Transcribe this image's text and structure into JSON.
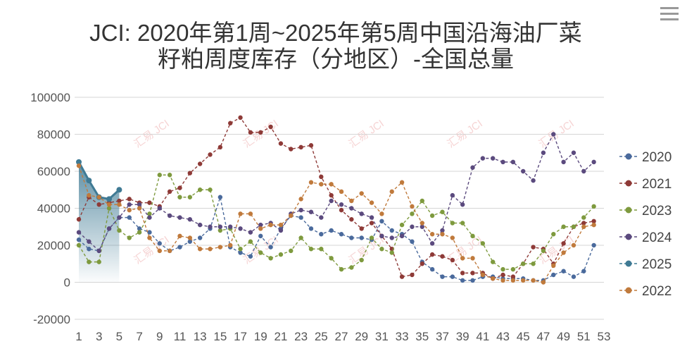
{
  "chart_data": {
    "type": "line",
    "title": "JCI: 2020年第1周~2025年第5周中国沿海油厂菜籽粕周度库存（分地区）-全国总量",
    "title_lines": [
      "JCI: 2020年第1周~2025年第5周中国沿海油厂菜",
      "籽粕周度库存（分地区）-全国总量"
    ],
    "xlabel": "",
    "ylabel": "",
    "x": [
      1,
      2,
      3,
      4,
      5,
      6,
      7,
      8,
      9,
      10,
      11,
      12,
      13,
      14,
      15,
      16,
      17,
      18,
      19,
      20,
      21,
      22,
      23,
      24,
      25,
      26,
      27,
      28,
      29,
      30,
      31,
      32,
      33,
      34,
      35,
      36,
      37,
      38,
      39,
      40,
      41,
      42,
      43,
      44,
      45,
      46,
      47,
      48,
      49,
      50,
      51,
      52,
      53
    ],
    "x_tick_labels": [
      "1",
      "3",
      "5",
      "7",
      "9",
      "11",
      "13",
      "15",
      "17",
      "19",
      "21",
      "23",
      "25",
      "27",
      "29",
      "31",
      "33",
      "35",
      "37",
      "39",
      "41",
      "43",
      "45",
      "47",
      "49",
      "51",
      "53"
    ],
    "y_ticks": [
      "100000",
      "80000",
      "60000",
      "40000",
      "20000",
      "0",
      "-20000"
    ],
    "ylim": [
      -20000,
      100000
    ],
    "grid": true,
    "legend_position": "right",
    "watermark": "汇易 JCI",
    "series": [
      {
        "name": "2020",
        "color": "#4a6a9c",
        "values": [
          23000,
          18000,
          17000,
          29000,
          35000,
          35000,
          29000,
          27000,
          21000,
          17000,
          19000,
          22000,
          24000,
          29000,
          46000,
          19000,
          16000,
          14000,
          25000,
          19000,
          29000,
          36000,
          35000,
          29000,
          26000,
          28000,
          26000,
          24000,
          24000,
          23000,
          33000,
          28000,
          26000,
          22000,
          11000,
          7000,
          3000,
          3000,
          1000,
          1000,
          3000,
          3000,
          2000,
          2000,
          2000,
          1000,
          1000,
          4000,
          6000,
          3000,
          6000,
          20000,
          null
        ]
      },
      {
        "name": "2021",
        "color": "#8e3a37",
        "values": [
          34000,
          46000,
          42000,
          43000,
          44000,
          45000,
          43000,
          43000,
          41000,
          49000,
          51000,
          59000,
          64000,
          69000,
          73000,
          86000,
          89000,
          81000,
          81000,
          84000,
          75000,
          72000,
          73000,
          74000,
          57000,
          47000,
          39000,
          34000,
          29000,
          32000,
          25000,
          18000,
          3000,
          4000,
          10000,
          15000,
          14000,
          12000,
          5000,
          5000,
          5000,
          2000,
          4000,
          3000,
          10000,
          19000,
          18000,
          10000,
          21000,
          30000,
          32000,
          33000,
          null
        ]
      },
      {
        "name": "2023",
        "color": "#7e9a3e",
        "values": [
          20000,
          11000,
          11000,
          40000,
          28000,
          24000,
          27000,
          37000,
          58000,
          58000,
          46000,
          46000,
          50000,
          50000,
          28000,
          29000,
          18000,
          22000,
          16000,
          13000,
          15000,
          17000,
          24000,
          18000,
          18000,
          13000,
          7000,
          8000,
          12000,
          24000,
          18000,
          16000,
          31000,
          37000,
          44000,
          36000,
          38000,
          32000,
          32000,
          25000,
          21000,
          11000,
          7000,
          7000,
          10000,
          10000,
          17000,
          26000,
          30000,
          30000,
          35000,
          41000,
          null
        ]
      },
      {
        "name": "2024",
        "color": "#5b4a7e",
        "values": [
          27000,
          22000,
          17000,
          29000,
          35000,
          42000,
          42000,
          35000,
          40000,
          36000,
          35000,
          34000,
          31000,
          30000,
          30000,
          30000,
          29000,
          27000,
          31000,
          32000,
          28000,
          37000,
          39000,
          38000,
          35000,
          44000,
          42000,
          40000,
          37000,
          35000,
          25000,
          24000,
          25000,
          30000,
          30000,
          21000,
          28000,
          47000,
          42000,
          62000,
          67000,
          67000,
          65000,
          65000,
          60000,
          55000,
          70000,
          80000,
          65000,
          70000,
          60000,
          65000,
          null
        ]
      },
      {
        "name": "2025",
        "color": "#3f7a94",
        "values": [
          65000,
          55000,
          46000,
          45000,
          50000,
          null,
          null,
          null,
          null,
          null,
          null,
          null,
          null,
          null,
          null,
          null,
          null,
          null,
          null,
          null,
          null,
          null,
          null,
          null,
          null,
          null,
          null,
          null,
          null,
          null,
          null,
          null,
          null,
          null,
          null,
          null,
          null,
          null,
          null,
          null,
          null,
          null,
          null,
          null,
          null,
          null,
          null,
          null,
          null,
          null,
          null,
          null,
          null
        ]
      },
      {
        "name": "2022",
        "color": "#c07a3c",
        "values": [
          63000,
          47000,
          46000,
          42000,
          42000,
          39000,
          40000,
          24000,
          17000,
          17000,
          25000,
          24000,
          18000,
          18000,
          19000,
          20000,
          37000,
          37000,
          29000,
          31000,
          31000,
          36000,
          45000,
          54000,
          53000,
          53000,
          49000,
          44000,
          48000,
          43000,
          37000,
          49000,
          54000,
          41000,
          32000,
          26000,
          26000,
          24000,
          13000,
          13000,
          4000,
          2000,
          1000,
          1000,
          1000,
          1000,
          0,
          9000,
          16000,
          20000,
          30000,
          31000,
          null
        ]
      }
    ]
  }
}
